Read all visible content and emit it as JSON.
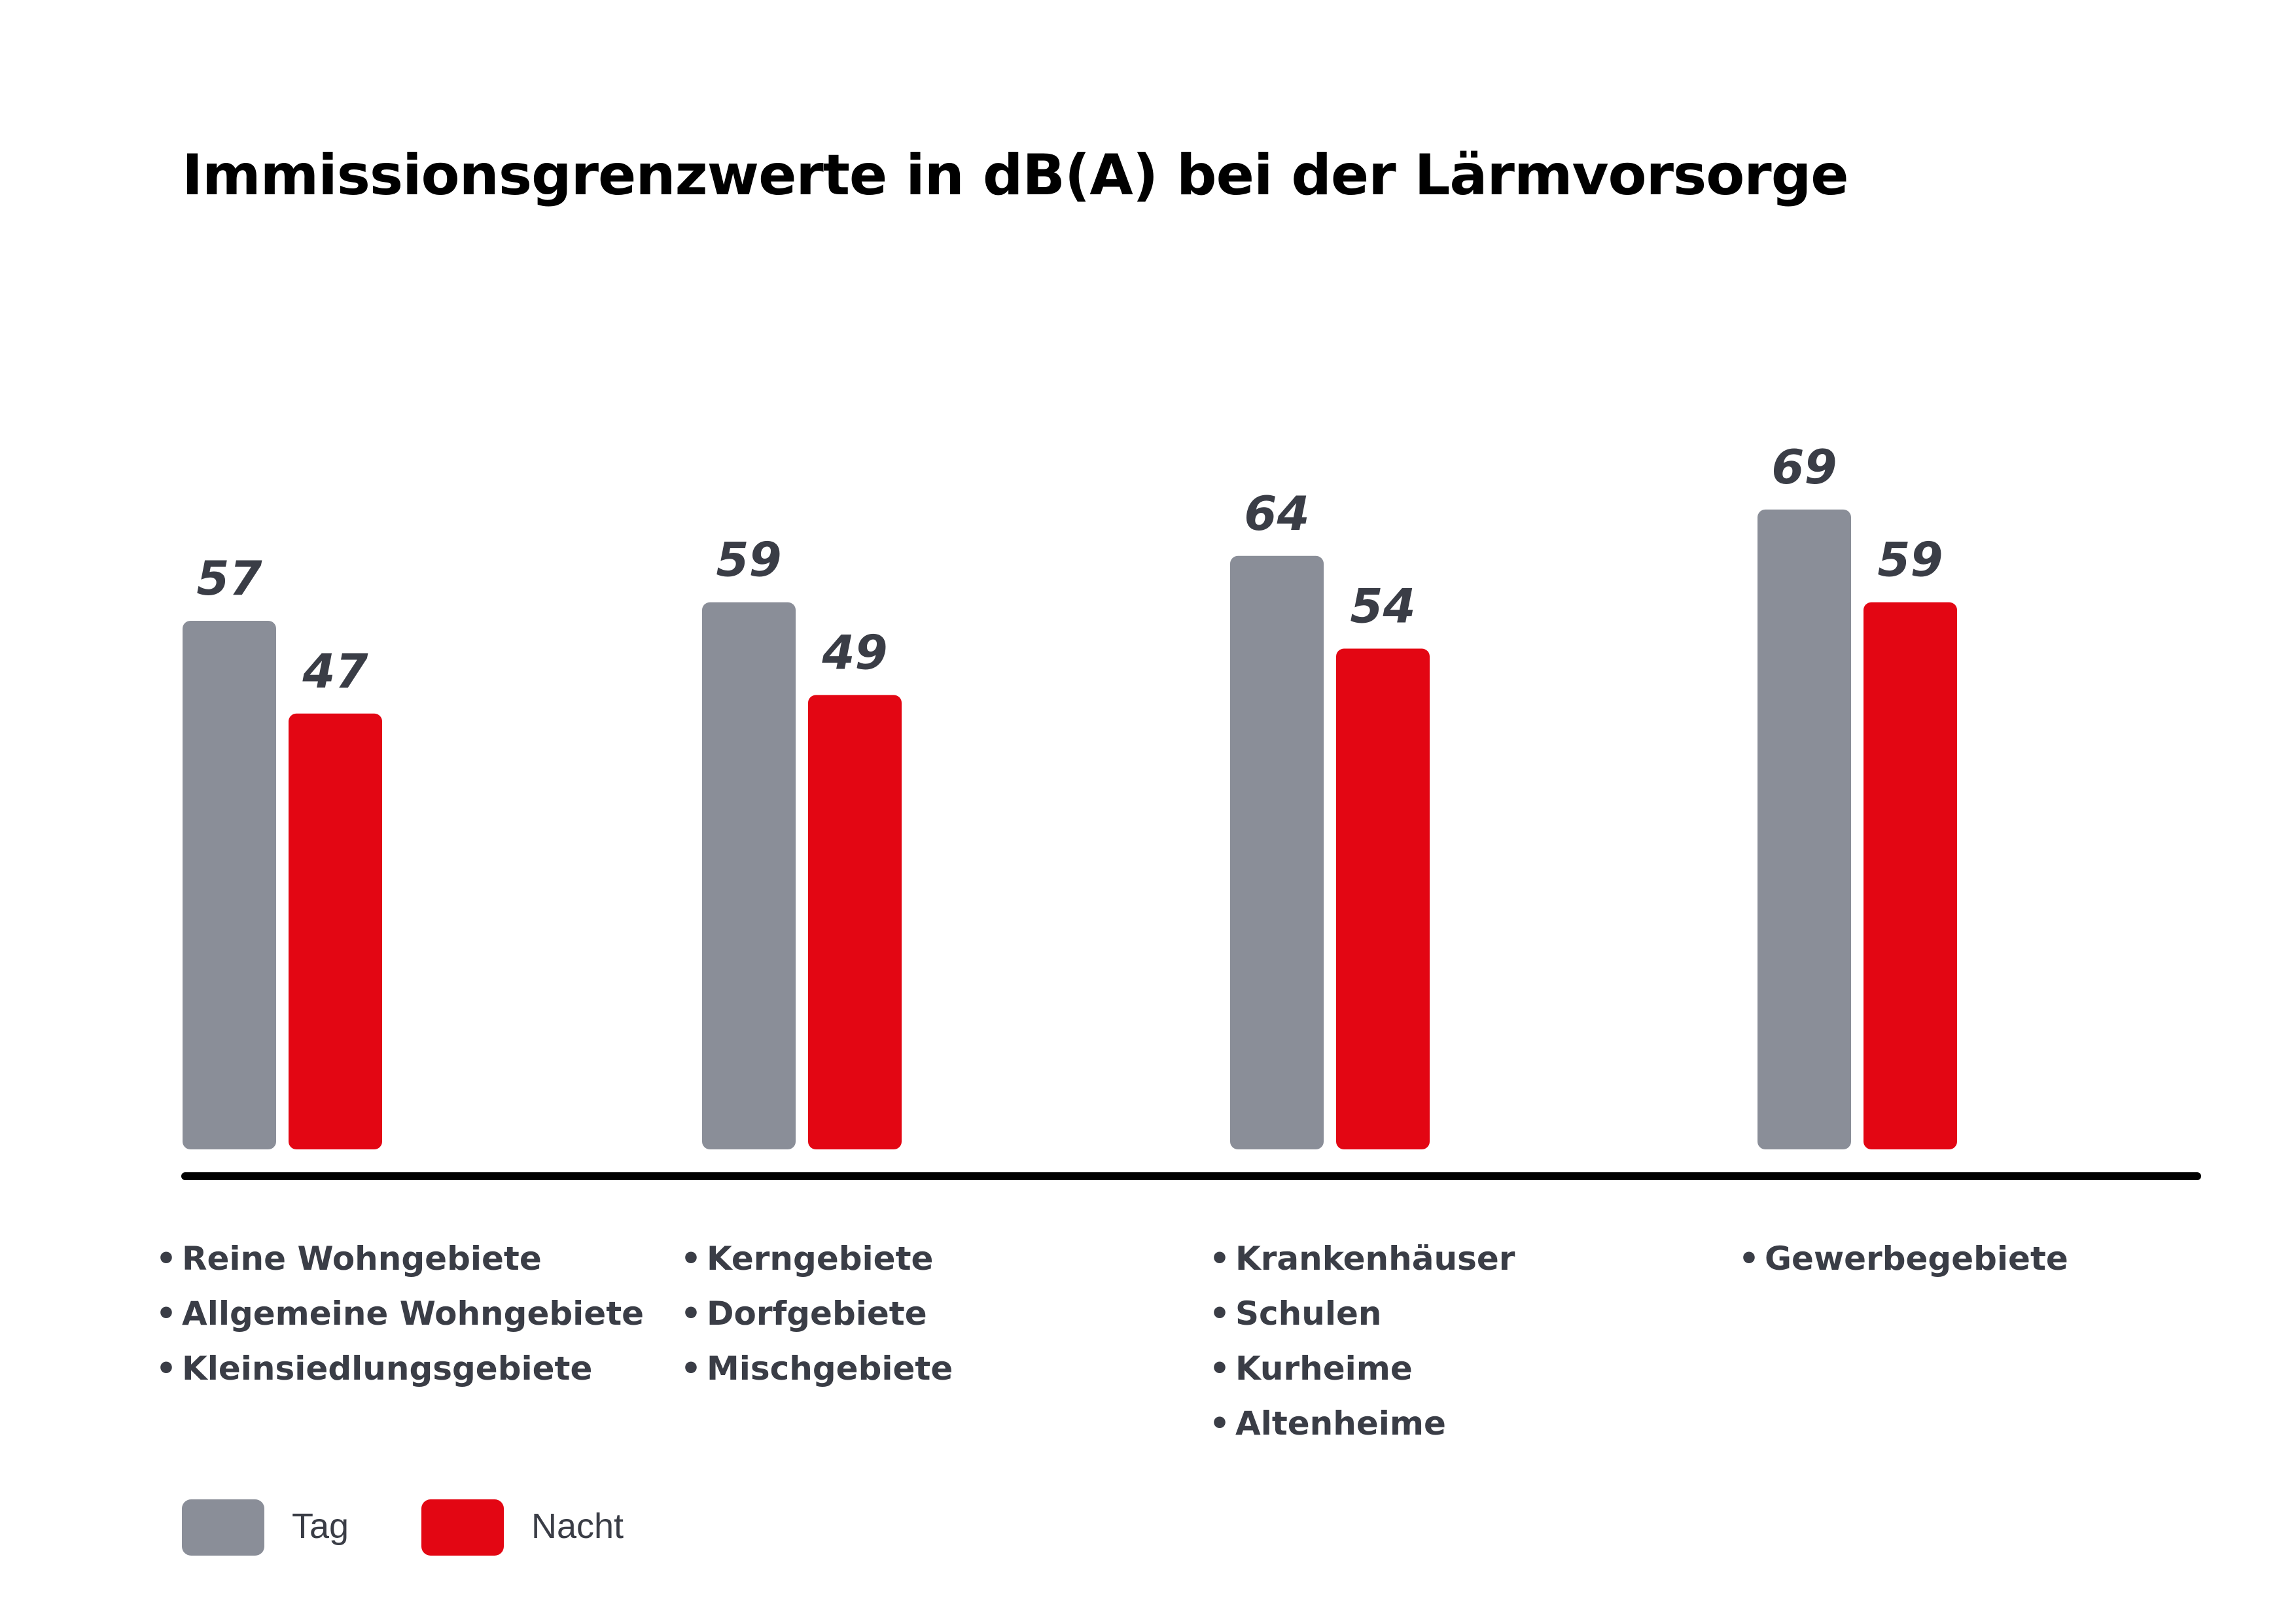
{
  "chart_data": {
    "type": "bar",
    "title": "Immissionsgrenzwerte in dB(A) bei der Lärmvorsorge",
    "xlabel": "",
    "ylabel": "",
    "ylim": [
      0,
      80
    ],
    "grid": false,
    "legend_position": "bottom-left",
    "categories": [
      [
        "Reine Wohngebiete",
        "Allgemeine Wohngebiete",
        "Kleinsiedlungsgebiete"
      ],
      [
        "Kerngebiete",
        "Dorfgebiete",
        "Mischgebiete"
      ],
      [
        "Krankenhäuser",
        "Schulen",
        "Kurheime",
        "Altenheime"
      ],
      [
        "Gewerbegebiete"
      ]
    ],
    "series": [
      {
        "name": "Tag",
        "color": "#8a8e98",
        "values": [
          57,
          59,
          64,
          69
        ]
      },
      {
        "name": "Nacht",
        "color": "#e30613",
        "values": [
          47,
          49,
          54,
          59
        ]
      }
    ],
    "bullet": "•"
  }
}
